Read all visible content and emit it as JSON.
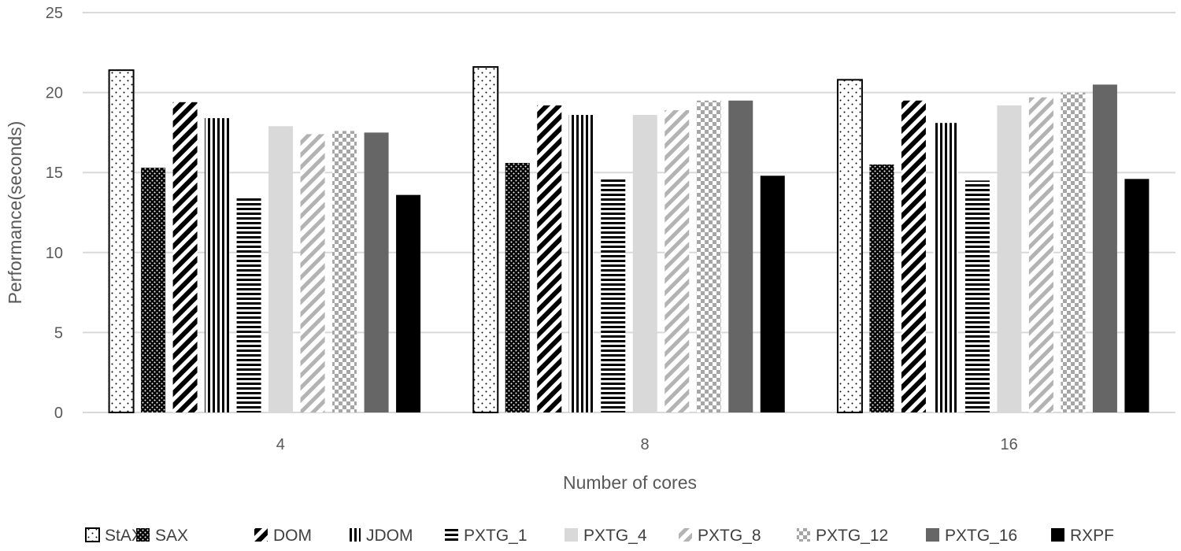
{
  "chart_data": {
    "type": "bar",
    "title": "",
    "xlabel": "Number of cores",
    "ylabel": "Performance(seconds)",
    "ylim": [
      0,
      25
    ],
    "yticks": [
      0,
      5,
      10,
      15,
      20,
      25
    ],
    "grid": true,
    "legend_position": "bottom",
    "categories": [
      "4",
      "8",
      "16"
    ],
    "series": [
      {
        "name": "StAX",
        "fill": "dots-white",
        "values": [
          21.4,
          21.6,
          20.8
        ]
      },
      {
        "name": "SAX",
        "fill": "dots-black",
        "values": [
          15.3,
          15.6,
          15.5
        ]
      },
      {
        "name": "DOM",
        "fill": "diag-dark",
        "values": [
          19.4,
          19.2,
          19.5
        ]
      },
      {
        "name": "JDOM",
        "fill": "vertical",
        "values": [
          18.4,
          18.6,
          18.1
        ]
      },
      {
        "name": "PXTG_1",
        "fill": "horizontal",
        "values": [
          13.5,
          14.7,
          14.5
        ]
      },
      {
        "name": "PXTG_4",
        "fill": "solid-light",
        "values": [
          17.9,
          18.6,
          19.2
        ]
      },
      {
        "name": "PXTG_8",
        "fill": "diag-light",
        "values": [
          17.4,
          18.9,
          19.7
        ]
      },
      {
        "name": "PXTG_12",
        "fill": "checker",
        "values": [
          17.6,
          19.5,
          20.0
        ]
      },
      {
        "name": "PXTG_16",
        "fill": "solid-dark",
        "values": [
          17.5,
          19.5,
          20.5
        ]
      },
      {
        "name": "RXPF",
        "fill": "solid-black",
        "values": [
          13.6,
          14.8,
          14.6
        ]
      }
    ]
  },
  "colors": {
    "grid": "#d9d9d9",
    "axis_text": "#595959",
    "pxtg4": "#d9d9d9",
    "pxtg16": "#666666",
    "rxpf": "#000000"
  }
}
